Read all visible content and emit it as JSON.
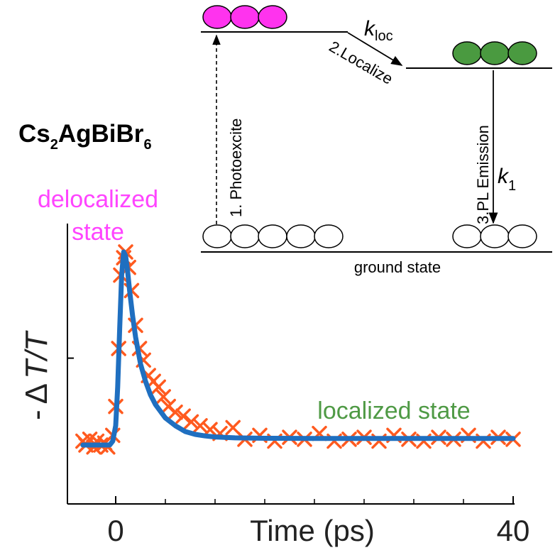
{
  "chart_data": {
    "type": "scatter",
    "xlabel": "Time (ps)",
    "ylabel_prefix": "-",
    "ylabel_delta": "Δ",
    "ylabel_t1": "T",
    "ylabel_slash": "/",
    "ylabel_t2": "T",
    "xlim": [
      -5,
      40.5
    ],
    "ylim": [
      -0.09,
      1.07
    ],
    "xticks_labeled": [
      0,
      40
    ],
    "xtick_labels": [
      "0",
      "40"
    ],
    "xticks_minor": [
      5,
      10,
      15,
      20,
      25,
      30,
      35
    ],
    "yticks": [
      0.45
    ],
    "grid": false,
    "legend": "none",
    "colors": {
      "measured": "#ff5a1f",
      "fit": "#1f6fc0",
      "delocalized": "#ff44ff",
      "localized": "#4f9a45"
    },
    "series": [
      {
        "marker": "x",
        "x": [
          -3.3,
          -3.0,
          -2.6,
          -2.2,
          -1.9,
          -1.5,
          -1.1,
          -0.8,
          -0.3,
          0.0,
          0.3,
          0.5,
          0.8,
          1.0,
          1.3,
          1.6,
          2.0,
          2.4,
          2.8,
          3.3,
          3.8,
          4.3,
          4.8,
          5.3,
          6.0,
          6.8,
          7.6,
          8.5,
          9.5,
          10.5,
          11.8,
          13.0,
          14.5,
          16.0,
          17.5,
          19.0,
          20.5,
          22.0,
          23.5,
          25.0,
          26.5,
          28.0,
          29.5,
          31.0,
          32.5,
          34.0,
          35.5,
          37.0,
          38.5,
          40.0
        ],
        "y": [
          0.02,
          0.0,
          0.03,
          -0.01,
          0.02,
          0.0,
          0.01,
          -0.01,
          0.05,
          0.2,
          0.5,
          0.88,
          0.97,
          1.0,
          0.92,
          0.8,
          0.62,
          0.5,
          0.44,
          0.36,
          0.33,
          0.3,
          0.25,
          0.2,
          0.17,
          0.15,
          0.12,
          0.1,
          0.08,
          0.06,
          0.09,
          0.03,
          0.05,
          0.02,
          0.04,
          0.03,
          0.06,
          0.02,
          0.03,
          0.04,
          0.02,
          0.05,
          0.03,
          0.02,
          0.04,
          0.03,
          0.05,
          0.02,
          0.04,
          0.03
        ]
      },
      {
        "line": true,
        "x": [
          -3.3,
          -0.6,
          -0.3,
          0.0,
          0.2,
          0.4,
          0.6,
          0.8,
          1.0,
          1.2,
          1.4,
          1.7,
          2.0,
          2.5,
          3.0,
          3.5,
          4.0,
          5.0,
          6.0,
          7.0,
          8.0,
          9.0,
          10.0,
          12.0,
          15.0,
          20.0,
          30.0,
          40.0
        ],
        "y": [
          0.0,
          0.0,
          0.02,
          0.1,
          0.3,
          0.6,
          0.88,
          1.0,
          0.98,
          0.9,
          0.8,
          0.67,
          0.56,
          0.42,
          0.33,
          0.26,
          0.21,
          0.14,
          0.1,
          0.07,
          0.055,
          0.047,
          0.042,
          0.037,
          0.035,
          0.034,
          0.034,
          0.034
        ]
      }
    ],
    "annotations": {
      "compound_cs": "Cs",
      "compound_2": "2",
      "compound_agbibr": "AgBiBr",
      "compound_6": "6",
      "delocalized_line1": "delocalized",
      "delocalized_line2": "state",
      "localized": "localized state",
      "ground_state": "ground state",
      "step1": "1. Photoexcite",
      "step2": "2.Localize",
      "step3": "3.PL Emission",
      "k_loc_k": "k",
      "k_loc_sub": "loc",
      "k1_k": "k",
      "k1_sub": "1"
    }
  }
}
